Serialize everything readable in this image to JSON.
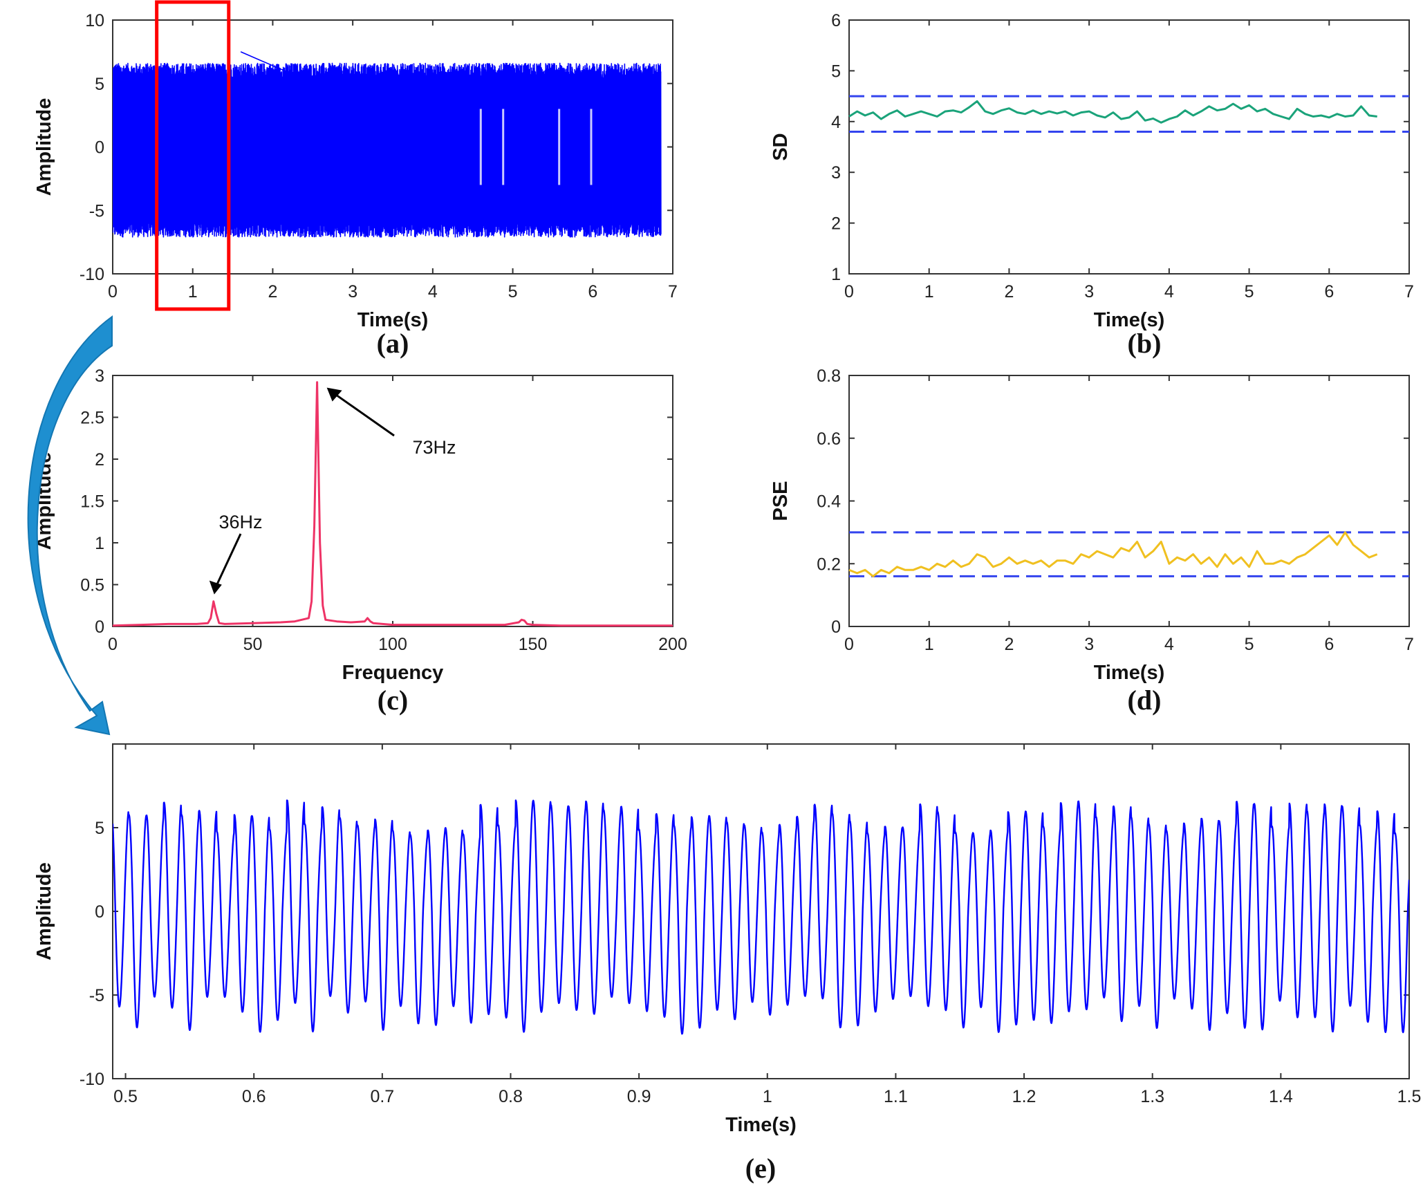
{
  "figure": {
    "background": "#ffffff"
  },
  "chart_data": [
    {
      "id": "a",
      "panel_label": "(a)",
      "type": "line",
      "xlabel": "Time(s)",
      "ylabel": "Amplitude",
      "xlim": [
        0,
        7
      ],
      "ylim": [
        -10,
        10
      ],
      "xticks": [
        "0",
        "1",
        "2",
        "3",
        "4",
        "5",
        "6",
        "7"
      ],
      "yticks": [
        "-10",
        "-5",
        "0",
        "5",
        "10"
      ],
      "color": "#0000ff",
      "description_series": {
        "name": "",
        "x_range": [
          0,
          6.85
        ],
        "amplitude_envelope": [
          -6.5,
          6.0
        ],
        "max_peak": 7.5,
        "min_peak": -7.8
      },
      "highlight_box": {
        "x": [
          0.55,
          1.45
        ],
        "color": "#ff0000"
      }
    },
    {
      "id": "b",
      "panel_label": "(b)",
      "type": "line",
      "xlabel": "Time(s)",
      "ylabel": "SD",
      "xlim": [
        0,
        7
      ],
      "ylim": [
        1,
        6
      ],
      "xticks": [
        "0",
        "1",
        "2",
        "3",
        "4",
        "5",
        "6",
        "7"
      ],
      "yticks": [
        "1",
        "2",
        "3",
        "4",
        "5",
        "6"
      ],
      "color": "#1aa37a",
      "threshold_color": "#3344ee",
      "thresholds": [
        4.5,
        3.8
      ],
      "x": [
        0,
        0.1,
        0.2,
        0.3,
        0.4,
        0.5,
        0.6,
        0.7,
        0.8,
        0.9,
        1.0,
        1.1,
        1.2,
        1.3,
        1.4,
        1.5,
        1.6,
        1.7,
        1.8,
        1.9,
        2.0,
        2.1,
        2.2,
        2.3,
        2.4,
        2.5,
        2.6,
        2.7,
        2.8,
        2.9,
        3.0,
        3.1,
        3.2,
        3.3,
        3.4,
        3.5,
        3.6,
        3.7,
        3.8,
        3.9,
        4.0,
        4.1,
        4.2,
        4.3,
        4.4,
        4.5,
        4.6,
        4.7,
        4.8,
        4.9,
        5.0,
        5.1,
        5.2,
        5.3,
        5.4,
        5.5,
        5.6,
        5.7,
        5.8,
        5.9,
        6.0,
        6.1,
        6.2,
        6.3,
        6.4,
        6.5,
        6.6
      ],
      "values": [
        4.1,
        4.2,
        4.12,
        4.18,
        4.05,
        4.15,
        4.22,
        4.1,
        4.15,
        4.2,
        4.15,
        4.1,
        4.2,
        4.22,
        4.18,
        4.28,
        4.4,
        4.2,
        4.15,
        4.22,
        4.26,
        4.18,
        4.15,
        4.22,
        4.15,
        4.2,
        4.16,
        4.2,
        4.12,
        4.18,
        4.2,
        4.12,
        4.08,
        4.18,
        4.05,
        4.08,
        4.2,
        4.02,
        4.06,
        3.98,
        4.05,
        4.1,
        4.22,
        4.12,
        4.2,
        4.3,
        4.22,
        4.25,
        4.35,
        4.25,
        4.32,
        4.2,
        4.25,
        4.15,
        4.1,
        4.05,
        4.25,
        4.15,
        4.1,
        4.12,
        4.08,
        4.15,
        4.1,
        4.12,
        4.3,
        4.12,
        4.1
      ]
    },
    {
      "id": "c",
      "panel_label": "(c)",
      "type": "line",
      "xlabel": "Frequency",
      "ylabel": "Amplitude",
      "xlim": [
        0,
        200
      ],
      "ylim": [
        0,
        3
      ],
      "xticks": [
        "0",
        "50",
        "100",
        "150",
        "200"
      ],
      "yticks": [
        "0",
        "0.5",
        "1",
        "1.5",
        "2",
        "2.5",
        "3"
      ],
      "color": "#ee3366",
      "x": [
        0,
        10,
        20,
        30,
        34,
        35,
        36,
        37,
        38,
        40,
        50,
        60,
        65,
        70,
        71,
        72,
        73,
        74,
        75,
        76,
        80,
        85,
        90,
        91,
        92,
        93,
        100,
        110,
        120,
        130,
        140,
        145,
        146,
        147,
        148,
        150,
        160,
        170,
        180,
        190,
        200
      ],
      "values": [
        0.01,
        0.02,
        0.03,
        0.03,
        0.04,
        0.1,
        0.3,
        0.15,
        0.04,
        0.03,
        0.04,
        0.05,
        0.06,
        0.1,
        0.3,
        1.2,
        2.92,
        1.0,
        0.25,
        0.08,
        0.06,
        0.05,
        0.06,
        0.1,
        0.06,
        0.04,
        0.02,
        0.02,
        0.02,
        0.02,
        0.02,
        0.05,
        0.08,
        0.07,
        0.03,
        0.02,
        0.01,
        0.01,
        0.01,
        0.01,
        0.01
      ],
      "annotations": [
        {
          "text": "36Hz",
          "x": 36,
          "y": 0.35
        },
        {
          "text": "73Hz",
          "x": 73,
          "y": 2.92
        }
      ]
    },
    {
      "id": "d",
      "panel_label": "(d)",
      "type": "line",
      "xlabel": "Time(s)",
      "ylabel": "PSE",
      "xlim": [
        0,
        7
      ],
      "ylim": [
        0,
        0.8
      ],
      "xticks": [
        "0",
        "1",
        "2",
        "3",
        "4",
        "5",
        "6",
        "7"
      ],
      "yticks": [
        "0",
        "0.2",
        "0.4",
        "0.6",
        "0.8"
      ],
      "color": "#f0c020",
      "threshold_color": "#3344ee",
      "thresholds": [
        0.3,
        0.16
      ],
      "x": [
        0,
        0.1,
        0.2,
        0.3,
        0.4,
        0.5,
        0.6,
        0.7,
        0.8,
        0.9,
        1.0,
        1.1,
        1.2,
        1.3,
        1.4,
        1.5,
        1.6,
        1.7,
        1.8,
        1.9,
        2.0,
        2.1,
        2.2,
        2.3,
        2.4,
        2.5,
        2.6,
        2.7,
        2.8,
        2.9,
        3.0,
        3.1,
        3.2,
        3.3,
        3.4,
        3.5,
        3.6,
        3.7,
        3.8,
        3.9,
        4.0,
        4.1,
        4.2,
        4.3,
        4.4,
        4.5,
        4.6,
        4.7,
        4.8,
        4.9,
        5.0,
        5.1,
        5.2,
        5.3,
        5.4,
        5.5,
        5.6,
        5.7,
        5.8,
        5.9,
        6.0,
        6.1,
        6.2,
        6.3,
        6.4,
        6.5,
        6.6
      ],
      "values": [
        0.18,
        0.17,
        0.18,
        0.16,
        0.18,
        0.17,
        0.19,
        0.18,
        0.18,
        0.19,
        0.18,
        0.2,
        0.19,
        0.21,
        0.19,
        0.2,
        0.23,
        0.22,
        0.19,
        0.2,
        0.22,
        0.2,
        0.21,
        0.2,
        0.21,
        0.19,
        0.21,
        0.21,
        0.2,
        0.23,
        0.22,
        0.24,
        0.23,
        0.22,
        0.25,
        0.24,
        0.27,
        0.22,
        0.24,
        0.27,
        0.2,
        0.22,
        0.21,
        0.23,
        0.2,
        0.22,
        0.19,
        0.23,
        0.2,
        0.22,
        0.19,
        0.24,
        0.2,
        0.2,
        0.21,
        0.2,
        0.22,
        0.23,
        0.25,
        0.27,
        0.29,
        0.26,
        0.3,
        0.26,
        0.24,
        0.22,
        0.23
      ]
    },
    {
      "id": "e",
      "panel_label": "(e)",
      "type": "line",
      "xlabel": "Time(s)",
      "ylabel": "Amplitude",
      "xlim": [
        0.49,
        1.5
      ],
      "ylim": [
        -10,
        10
      ],
      "xticks": [
        "0.5",
        "0.6",
        "0.7",
        "0.8",
        "0.9",
        "1",
        "1.1",
        "1.2",
        "1.3",
        "1.4",
        "1.5"
      ],
      "yticks": [
        "-10",
        "-5",
        "0",
        "5"
      ],
      "color": "#0000ff",
      "description_series": {
        "name": "",
        "dominant_frequency_hz": 73,
        "cycle_peak_range": [
          4.5,
          6.6
        ],
        "cycle_trough_range": [
          -7.3,
          -5.0
        ]
      }
    }
  ]
}
